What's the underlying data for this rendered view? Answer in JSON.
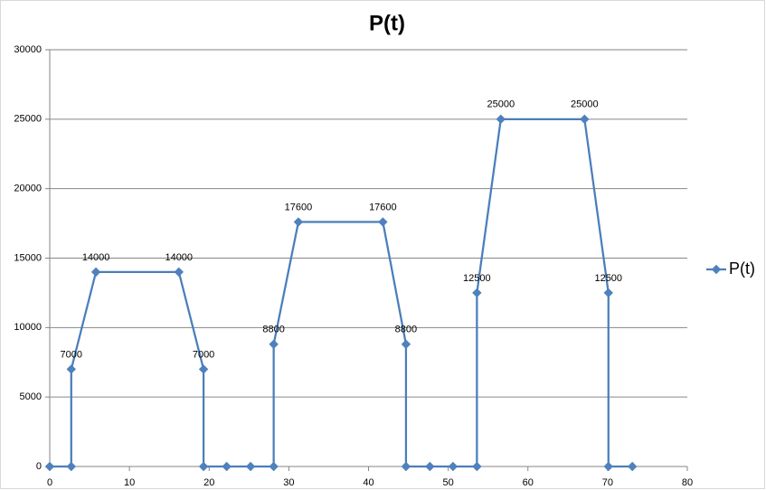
{
  "chart_data": {
    "type": "line",
    "title": "P(t)",
    "x": [
      0,
      2.7,
      2.7,
      5.8,
      16.2,
      19.3,
      19.3,
      22.2,
      25.2,
      28.1,
      28.1,
      31.2,
      41.8,
      44.7,
      44.7,
      47.7,
      50.6,
      53.6,
      53.6,
      56.6,
      67.1,
      70.1,
      70.1,
      73.1
    ],
    "series": [
      {
        "name": "P(t)",
        "color": "#4a7ebb",
        "values": [
          0,
          0,
          7000,
          14000,
          14000,
          7000,
          0,
          0,
          0,
          0,
          8800,
          17600,
          17600,
          8800,
          0,
          0,
          0,
          0,
          12500,
          25000,
          25000,
          12500,
          0,
          0
        ]
      }
    ],
    "xlim": [
      0,
      80
    ],
    "xticks": [
      0,
      10,
      20,
      30,
      40,
      50,
      60,
      70,
      80
    ],
    "ylim": [
      0,
      30000
    ],
    "yticks": [
      0,
      5000,
      10000,
      15000,
      20000,
      25000,
      30000
    ],
    "grid": true,
    "legend": "right",
    "data_labels": true
  }
}
